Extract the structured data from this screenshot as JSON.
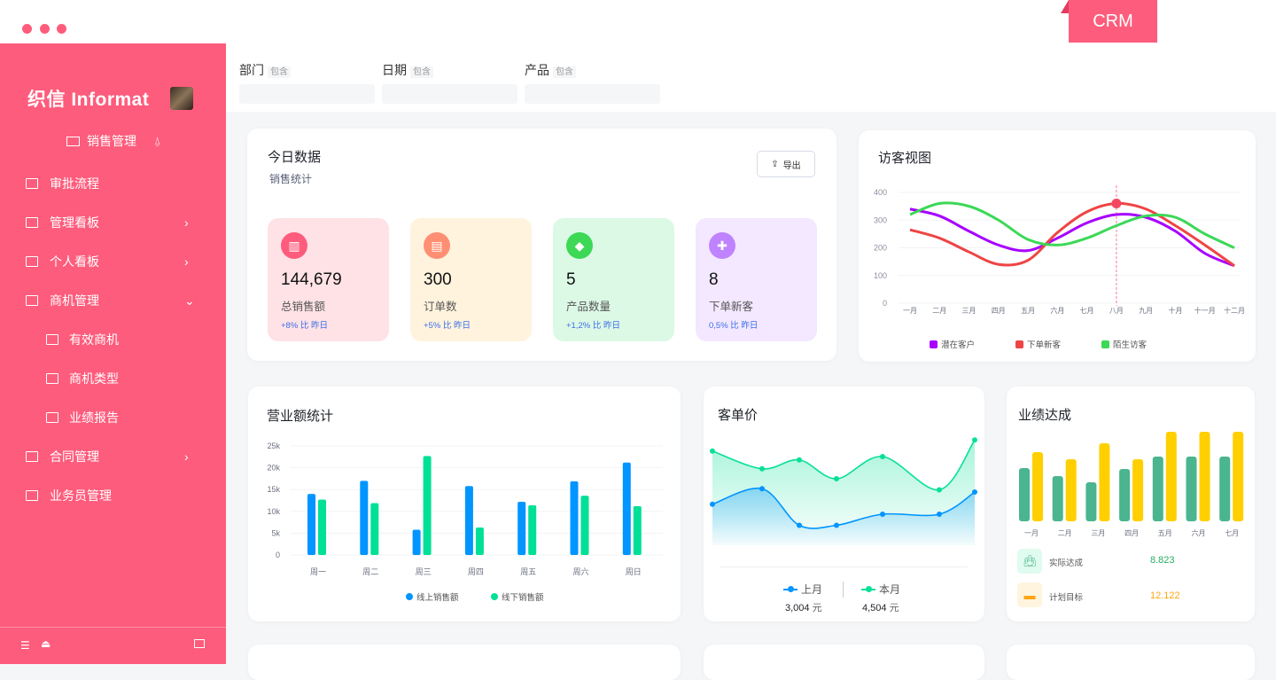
{
  "badge": "CRM",
  "sidebar": {
    "logo": "织信 Informat",
    "app": "销售管理",
    "items": [
      {
        "label": "审批流程",
        "icon": "user-check-icon",
        "chevron": ""
      },
      {
        "label": "管理看板",
        "icon": "board-icon",
        "chevron": "›"
      },
      {
        "label": "个人看板",
        "icon": "table-icon",
        "chevron": "›"
      },
      {
        "label": "商机管理",
        "icon": "table-icon",
        "chevron": "⌄"
      },
      {
        "label": "有效商机",
        "icon": "table-icon",
        "chevron": "",
        "sub": true
      },
      {
        "label": "商机类型",
        "icon": "table-icon",
        "chevron": "",
        "sub": true
      },
      {
        "label": "业绩报告",
        "icon": "table-icon",
        "chevron": "",
        "sub": true
      },
      {
        "label": "合同管理",
        "icon": "table-icon",
        "chevron": "›"
      },
      {
        "label": "业务员管理",
        "icon": "table-icon",
        "chevron": ""
      }
    ]
  },
  "filters": [
    {
      "label": "部门",
      "tag": "包含"
    },
    {
      "label": "日期",
      "tag": "包含"
    },
    {
      "label": "产品",
      "tag": "包含"
    }
  ],
  "today": {
    "title": "今日数据",
    "subtitle": "销售统计",
    "export": "导出",
    "stats": [
      {
        "value": "144,679",
        "label": "总销售额",
        "change": "+8% 比 昨日",
        "bg": "#ffe2e6",
        "iconbg": "#fe5c7c",
        "icon": "chart-icon"
      },
      {
        "value": "300",
        "label": "订单数",
        "change": "+5% 比 昨日",
        "bg": "#fff3dd",
        "iconbg": "#fe8f73",
        "icon": "document-icon"
      },
      {
        "value": "5",
        "label": "产品数量",
        "change": "+1,2% 比 昨日",
        "bg": "#dcf9e6",
        "iconbg": "#3cd856",
        "icon": "tag-icon"
      },
      {
        "value": "8",
        "label": "下单新客",
        "change": "0,5% 比 昨日",
        "bg": "#f3e8ff",
        "iconbg": "#bf83ff",
        "icon": "user-add-icon"
      }
    ]
  },
  "visitor": {
    "title": "访客视图"
  },
  "revenue": {
    "title": "营业额统计"
  },
  "price": {
    "title": "客单价",
    "last_label": "上月",
    "last_value": "3,004",
    "this_label": "本月",
    "this_value": "4,504",
    "unit": "元"
  },
  "perf": {
    "title": "业绩达成",
    "actual_label": "实际达成",
    "actual_value": "8.823",
    "target_label": "计划目标",
    "target_value": "12.122"
  },
  "chart_data": [
    {
      "type": "line",
      "ylim": [
        0,
        400
      ],
      "yticks": [
        0,
        100,
        200,
        300,
        400
      ],
      "categories": [
        "一月",
        "二月",
        "三月",
        "四月",
        "五月",
        "六月",
        "七月",
        "八月",
        "九月",
        "十月",
        "十一月",
        "十二月"
      ],
      "highlight": "八月",
      "series": [
        {
          "name": "潜在客户",
          "color": "#a700ff",
          "values": [
            340,
            315,
            260,
            210,
            190,
            235,
            290,
            320,
            310,
            260,
            180,
            135
          ]
        },
        {
          "name": "下单新客",
          "color": "#ef4444",
          "values": [
            265,
            235,
            185,
            140,
            155,
            255,
            330,
            360,
            340,
            280,
            210,
            135
          ]
        },
        {
          "name": "陌生访客",
          "color": "#3cd856",
          "values": [
            320,
            360,
            350,
            300,
            230,
            210,
            235,
            280,
            315,
            310,
            250,
            200
          ]
        }
      ]
    },
    {
      "type": "bar",
      "ylim": [
        0,
        25000
      ],
      "yticks": [
        "0",
        "5k",
        "10k",
        "15k",
        "20k",
        "25k"
      ],
      "categories": [
        "周一",
        "周二",
        "周三",
        "周四",
        "周五",
        "周六",
        "周日"
      ],
      "series": [
        {
          "name": "线上销售额",
          "color": "#0095ff",
          "values": [
            14000,
            17000,
            5800,
            15800,
            12200,
            16900,
            21200
          ]
        },
        {
          "name": "线下销售额",
          "color": "#00e096",
          "values": [
            12700,
            11900,
            22700,
            6300,
            11400,
            13600,
            11200
          ]
        }
      ]
    },
    {
      "type": "area",
      "ylim": [
        0,
        100
      ],
      "series": [
        {
          "name": "上月",
          "color": "#0095ff",
          "values": [
            37,
            51,
            18,
            18,
            28,
            28,
            48
          ]
        },
        {
          "name": "本月",
          "color": "#07e098",
          "values": [
            85,
            69,
            77,
            60,
            80,
            50,
            95
          ]
        }
      ]
    },
    {
      "type": "bar",
      "categories": [
        "一月",
        "二月",
        "三月",
        "四月",
        "五月",
        "六月",
        "七月"
      ],
      "series": [
        {
          "name": "实际达成",
          "color": "#4ab58e",
          "values": [
            60,
            51,
            44,
            59,
            73,
            73,
            73
          ]
        },
        {
          "name": "计划目标",
          "color": "#ffcf00",
          "values": [
            78,
            70,
            88,
            70,
            101,
            101,
            101
          ]
        }
      ]
    }
  ]
}
